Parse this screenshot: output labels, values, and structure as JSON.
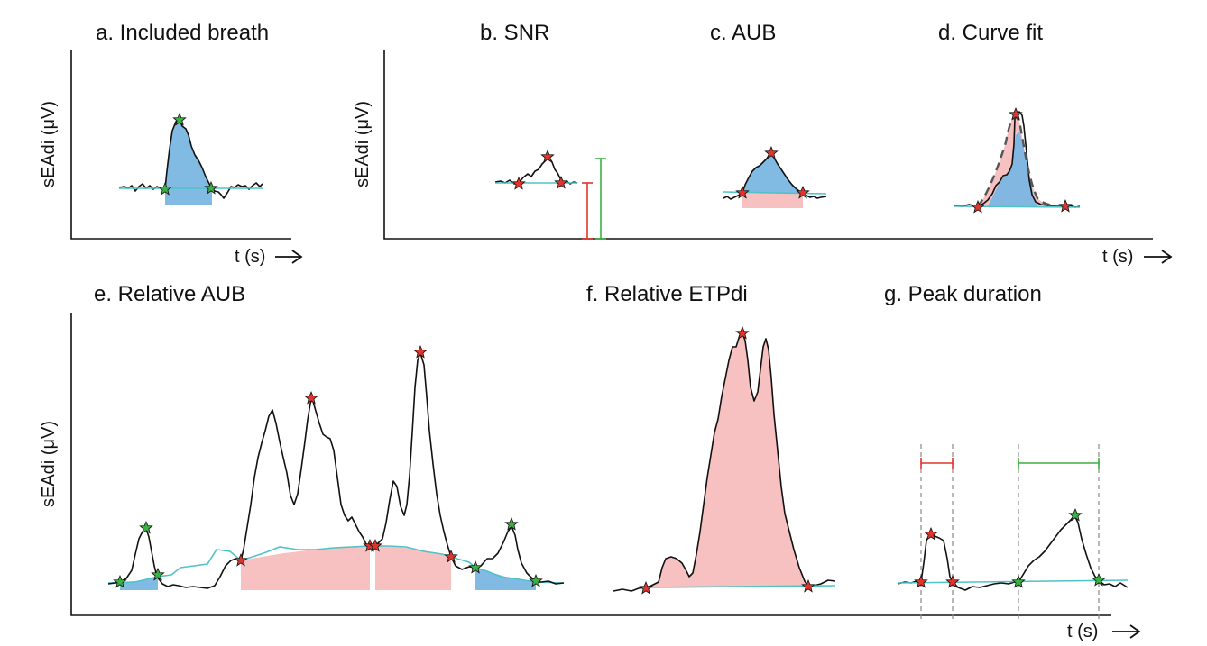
{
  "panels": {
    "a": {
      "title": "a. Included breath"
    },
    "b": {
      "title": "b. SNR"
    },
    "c": {
      "title": "c. AUB"
    },
    "d": {
      "title": "d. Curve fit"
    },
    "e": {
      "title": "e. Relative AUB"
    },
    "f": {
      "title": "f. Relative ETPdi"
    },
    "g": {
      "title": "g. Peak duration"
    }
  },
  "axes": {
    "ylabel": "sEAdi (μV)",
    "xlabel": "t (s)"
  },
  "colors": {
    "signal": "#111111",
    "baseline": "#4fc3c8",
    "included_fill": "#7ab6e1",
    "excluded_fill": "#f7c1c1",
    "pass_marker": "#3cb043",
    "fail_marker": "#e0352c"
  },
  "icons": {
    "star": "star-marker",
    "arrow": "right-arrow-icon"
  }
}
